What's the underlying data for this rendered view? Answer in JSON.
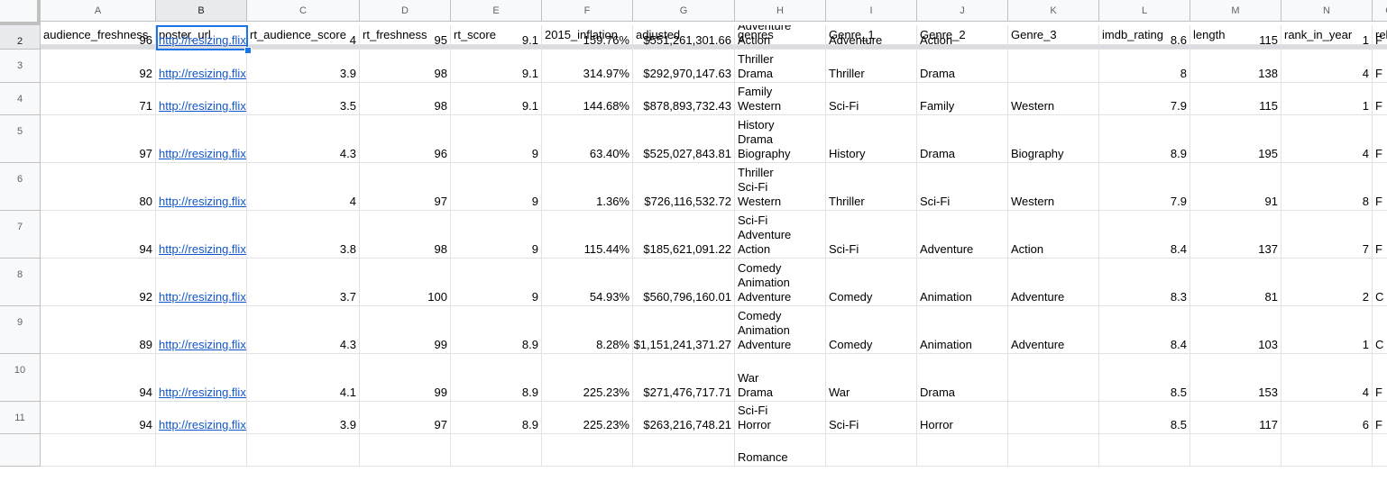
{
  "columns": [
    "A",
    "B",
    "C",
    "D",
    "E",
    "F",
    "G",
    "H",
    "I",
    "J",
    "K",
    "L",
    "M",
    "N",
    "O"
  ],
  "header_row": [
    "audience_freshness",
    "poster_url",
    "rt_audience_score",
    "rt_freshness",
    "rt_score",
    "2015_inflation",
    "adjusted",
    "genres",
    "Genre_1",
    "Genre_2",
    "Genre_3",
    "imdb_rating",
    "length",
    "rank_in_year",
    "release_year"
  ],
  "rows": [
    {
      "num": "2",
      "cells": [
        "96",
        "http://resizing.flixster.com/",
        "4",
        "95",
        "9.1",
        "159.76%",
        "$551,261,301.66",
        [
          "Adventure",
          "Action"
        ],
        "Adventure",
        "Action",
        "",
        "8.6",
        "115",
        "1",
        "F"
      ]
    },
    {
      "num": "3",
      "cells": [
        "92",
        "http://resizing.flixster.com/",
        "3.9",
        "98",
        "9.1",
        "314.97%",
        "$292,970,147.63",
        [
          "Thriller",
          "Drama"
        ],
        "Thriller",
        "Drama",
        "",
        "8",
        "138",
        "4",
        "F"
      ]
    },
    {
      "num": "4",
      "cells": [
        "71",
        "http://resizing.flixster.com/",
        "3.5",
        "98",
        "9.1",
        "144.68%",
        "$878,893,732.43",
        [
          "Sci-Fi",
          "Family",
          "Western"
        ],
        "Sci-Fi",
        "Family",
        "Western",
        "7.9",
        "115",
        "1",
        "F"
      ]
    },
    {
      "num": "5",
      "cells": [
        "97",
        "http://resizing.flixster.com/",
        "4.3",
        "96",
        "9",
        "63.40%",
        "$525,027,843.81",
        [
          "History",
          "Drama",
          "Biography"
        ],
        "History",
        "Drama",
        "Biography",
        "8.9",
        "195",
        "4",
        "F"
      ]
    },
    {
      "num": "6",
      "cells": [
        "80",
        "http://resizing.flixster.com/",
        "4",
        "97",
        "9",
        "1.36%",
        "$726,116,532.72",
        [
          "Thriller",
          "Sci-Fi",
          "Western"
        ],
        "Thriller",
        "Sci-Fi",
        "Western",
        "7.9",
        "91",
        "8",
        "F"
      ]
    },
    {
      "num": "7",
      "cells": [
        "94",
        "http://resizing.flixster.com/",
        "3.8",
        "98",
        "9",
        "115.44%",
        "$185,621,091.22",
        [
          "Sci-Fi",
          "Adventure",
          "Action"
        ],
        "Sci-Fi",
        "Adventure",
        "Action",
        "8.4",
        "137",
        "7",
        "F"
      ]
    },
    {
      "num": "8",
      "cells": [
        "92",
        "http://resizing.flixster.com/",
        "3.7",
        "100",
        "9",
        "54.93%",
        "$560,796,160.01",
        [
          "Comedy",
          "Animation",
          "Adventure"
        ],
        "Comedy",
        "Animation",
        "Adventure",
        "8.3",
        "81",
        "2",
        "C"
      ]
    },
    {
      "num": "9",
      "cells": [
        "89",
        "http://resizing.flixster.com/",
        "4.3",
        "99",
        "8.9",
        "8.28%",
        "$1,151,241,371.27",
        [
          "Comedy",
          "Animation",
          "Adventure"
        ],
        "Comedy",
        "Animation",
        "Adventure",
        "8.4",
        "103",
        "1",
        "C"
      ]
    },
    {
      "num": "10",
      "cells": [
        "94",
        "http://resizing.flixster.com/",
        "4.1",
        "99",
        "8.9",
        "225.23%",
        "$271,476,717.71",
        [
          "War",
          "Drama"
        ],
        "War",
        "Drama",
        "",
        "8.5",
        "153",
        "4",
        "F"
      ]
    },
    {
      "num": "11",
      "cells": [
        "94",
        "http://resizing.flixster.com/",
        "3.9",
        "97",
        "8.9",
        "225.23%",
        "$263,216,748.21",
        [
          "Sci-Fi",
          "Horror"
        ],
        "Sci-Fi",
        "Horror",
        "",
        "8.5",
        "117",
        "6",
        "F"
      ]
    },
    {
      "num": "",
      "cells": [
        "",
        "",
        "",
        "",
        "",
        "",
        "",
        [
          "Romance"
        ],
        "",
        "",
        "",
        "",
        "",
        "",
        ""
      ]
    }
  ],
  "selected_cell": "B2"
}
